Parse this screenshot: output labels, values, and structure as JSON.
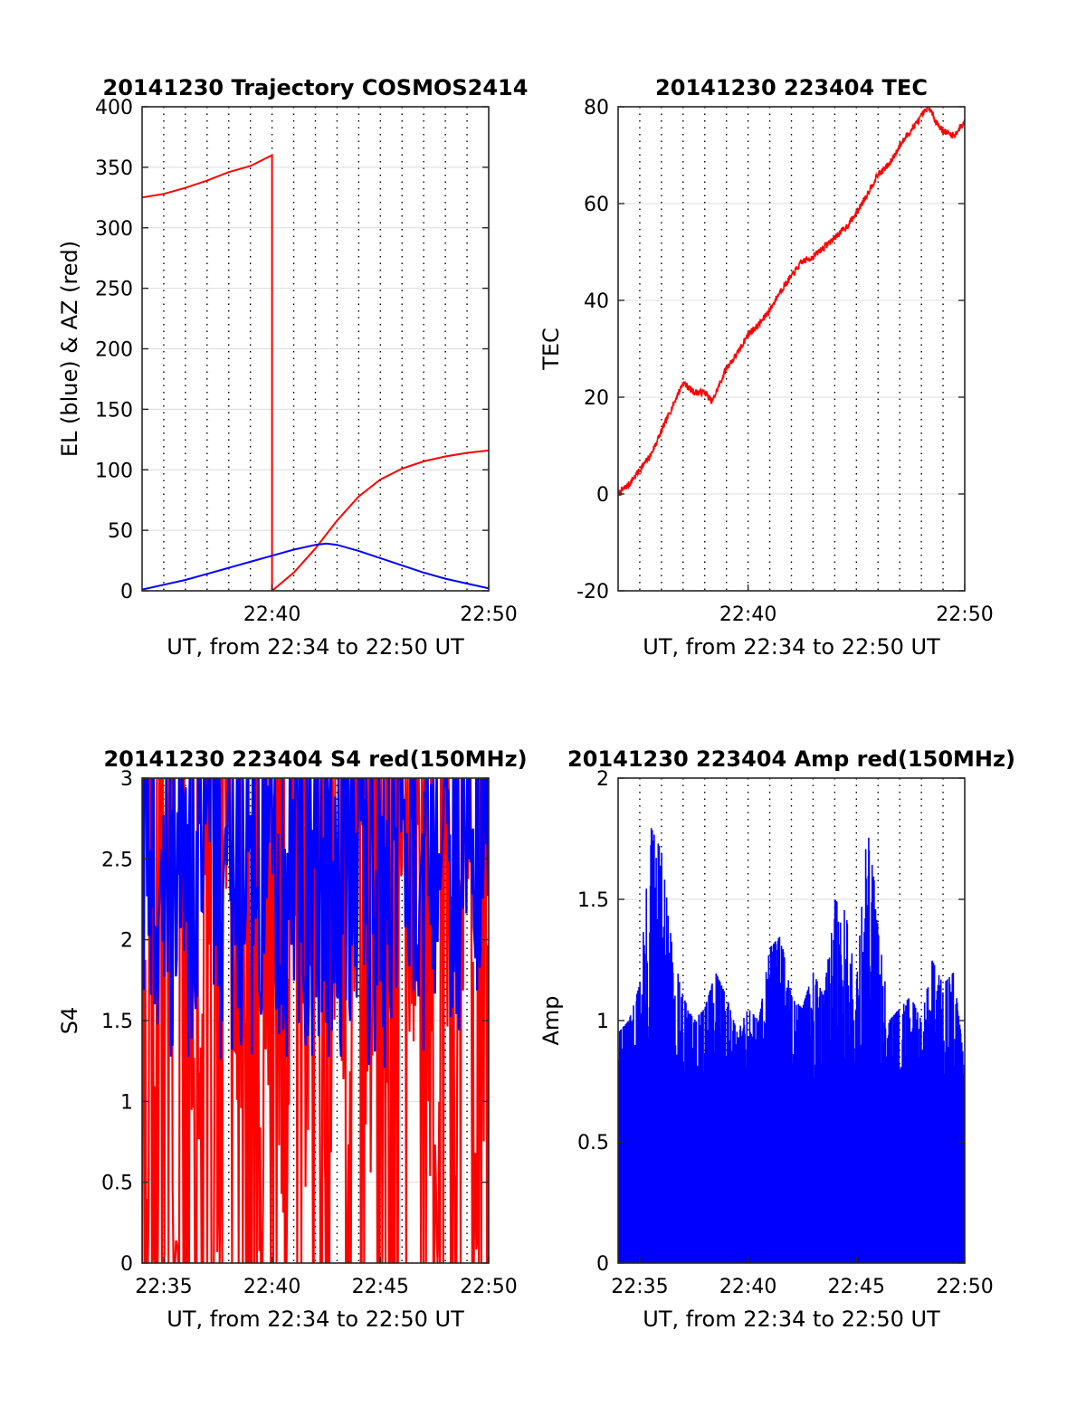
{
  "chart_data": [
    {
      "type": "line",
      "title": "20141230 Trajectory COSMOS2414",
      "xlabel": "UT, from 22:34 to 22:50 UT",
      "ylabel": "EL (blue) & AZ (red)",
      "xlim": [
        "22:34",
        "22:50"
      ],
      "ylim": [
        0,
        400
      ],
      "x_ticks": [
        "22:40",
        "22:50"
      ],
      "y_ticks": [
        0,
        50,
        100,
        150,
        200,
        250,
        300,
        350,
        400
      ],
      "grid": true,
      "series": [
        {
          "color": "#ff0000",
          "x": [
            "22:34:00",
            "22:35:00",
            "22:36:00",
            "22:37:00",
            "22:38:00",
            "22:39:00",
            "22:40:00",
            "22:40:00",
            "22:41:00",
            "22:42:00",
            "22:43:00",
            "22:44:00",
            "22:45:00",
            "22:46:00",
            "22:47:00",
            "22:48:00",
            "22:49:00",
            "22:50:00"
          ],
          "values": [
            325,
            328,
            333,
            339,
            346,
            351,
            360,
            0,
            15,
            35,
            58,
            78,
            92,
            101,
            107,
            111,
            114,
            116
          ]
        },
        {
          "color": "#0000ff",
          "x": [
            "22:34:00",
            "22:35:00",
            "22:36:00",
            "22:37:00",
            "22:38:00",
            "22:39:00",
            "22:40:00",
            "22:41:00",
            "22:42:00",
            "22:42:30",
            "22:43:00",
            "22:44:00",
            "22:45:00",
            "22:46:00",
            "22:47:00",
            "22:48:00",
            "22:49:00",
            "22:50:00"
          ],
          "values": [
            1,
            5,
            9,
            14,
            19,
            24,
            29,
            34,
            38,
            39,
            38,
            33,
            27,
            21,
            15,
            10,
            6,
            2
          ]
        }
      ]
    },
    {
      "type": "line",
      "title": "20141230 223404 TEC",
      "xlabel": "UT, from 22:34 to 22:50 UT",
      "ylabel": "TEC",
      "xlim": [
        "22:34",
        "22:50"
      ],
      "ylim": [
        -20,
        80
      ],
      "x_ticks": [
        "22:40",
        "22:50"
      ],
      "y_ticks": [
        -20,
        0,
        20,
        40,
        60,
        80
      ],
      "grid": true,
      "series": [
        {
          "color": "#ff0000",
          "x": [
            "22:34:00",
            "22:34:30",
            "22:35:00",
            "22:35:30",
            "22:36:00",
            "22:36:30",
            "22:37:00",
            "22:37:30",
            "22:38:00",
            "22:38:20",
            "22:39:00",
            "22:39:30",
            "22:40:00",
            "22:40:30",
            "22:41:00",
            "22:41:30",
            "22:42:00",
            "22:42:30",
            "22:43:00",
            "22:43:30",
            "22:44:00",
            "22:44:30",
            "22:45:00",
            "22:45:30",
            "22:46:00",
            "22:46:30",
            "22:47:00",
            "22:47:30",
            "22:48:00",
            "22:48:20",
            "22:48:40",
            "22:49:00",
            "22:49:30",
            "22:50:00"
          ],
          "values": [
            0,
            2,
            5,
            8,
            13,
            18,
            23,
            21,
            21,
            19,
            26,
            29,
            33,
            35,
            38,
            42,
            45,
            48,
            49,
            51,
            53,
            55,
            58,
            62,
            66,
            68,
            72,
            75,
            78,
            80,
            77,
            75,
            74,
            77
          ]
        }
      ]
    },
    {
      "type": "line",
      "title": "20141230 223404 S4 red(150MHz)",
      "xlabel": "UT, from 22:34 to 22:50 UT",
      "ylabel": "S4",
      "xlim": [
        "22:34",
        "22:50"
      ],
      "ylim": [
        0,
        3
      ],
      "x_ticks": [
        "22:35",
        "22:40",
        "22:45",
        "22:50"
      ],
      "y_ticks": [
        0,
        0.5,
        1,
        1.5,
        2,
        2.5,
        3
      ],
      "grid": true,
      "series": [
        {
          "color": "#ff0000",
          "x": [
            "22:34:00",
            "22:34:30",
            "22:35:00",
            "22:35:30",
            "22:36:00",
            "22:36:30",
            "22:37:00",
            "22:37:30",
            "22:38:00",
            "22:38:30",
            "22:39:00",
            "22:39:30",
            "22:40:00",
            "22:40:30",
            "22:41:00",
            "22:41:30",
            "22:42:00",
            "22:42:30",
            "22:43:00",
            "22:43:30",
            "22:44:00",
            "22:44:30",
            "22:45:00",
            "22:45:30",
            "22:46:00",
            "22:46:30",
            "22:47:00",
            "22:47:30",
            "22:48:00",
            "22:48:30",
            "22:49:00",
            "22:49:30",
            "22:50:00"
          ],
          "values": [
            1.9,
            0,
            3.0,
            0,
            2.4,
            0.3,
            3.0,
            0,
            2.8,
            1.3,
            3.0,
            0,
            2.6,
            0,
            3.0,
            0.9,
            3.0,
            0,
            3.0,
            0,
            2.7,
            0.5,
            3.0,
            0,
            2.9,
            1.6,
            3.0,
            0,
            2.5,
            1.1,
            3.0,
            0,
            1.8
          ]
        },
        {
          "color": "#0000ff",
          "x": [
            "22:34:00",
            "22:34:30",
            "22:35:00",
            "22:35:30",
            "22:36:00",
            "22:36:30",
            "22:37:00",
            "22:37:30",
            "22:38:00",
            "22:38:30",
            "22:39:00",
            "22:39:30",
            "22:40:00",
            "22:40:30",
            "22:41:00",
            "22:41:30",
            "22:42:00",
            "22:42:30",
            "22:43:00",
            "22:43:30",
            "22:44:00",
            "22:44:30",
            "22:45:00",
            "22:45:30",
            "22:46:00",
            "22:46:30",
            "22:47:00",
            "22:47:30",
            "22:48:00",
            "22:48:30",
            "22:49:00",
            "22:49:30",
            "22:50:00"
          ],
          "values": [
            3.0,
            1.4,
            2.8,
            1.6,
            3.0,
            1.5,
            2.9,
            1.7,
            3.0,
            1.3,
            2.8,
            1.5,
            3.0,
            1.4,
            2.9,
            1.6,
            3.0,
            1.5,
            2.7,
            1.4,
            3.0,
            1.6,
            2.9,
            1.5,
            3.0,
            1.3,
            2.8,
            1.6,
            3.0,
            1.5,
            2.9,
            1.6,
            3.0
          ]
        }
      ]
    },
    {
      "type": "bar",
      "title": "20141230 223404 Amp red(150MHz)",
      "xlabel": "UT, from 22:34 to 22:50 UT",
      "ylabel": "Amp",
      "xlim": [
        "22:34",
        "22:50"
      ],
      "ylim": [
        0,
        2
      ],
      "x_ticks": [
        "22:35",
        "22:40",
        "22:45",
        "22:50"
      ],
      "y_ticks": [
        0,
        0.5,
        1,
        1.5,
        2
      ],
      "grid": true,
      "series": [
        {
          "color": "#0000ff",
          "x": [
            "22:34:00",
            "22:34:30",
            "22:35:00",
            "22:35:30",
            "22:36:00",
            "22:36:30",
            "22:37:00",
            "22:37:30",
            "22:38:00",
            "22:38:30",
            "22:39:00",
            "22:39:30",
            "22:40:00",
            "22:40:30",
            "22:41:00",
            "22:41:30",
            "22:42:00",
            "22:42:30",
            "22:43:00",
            "22:43:30",
            "22:44:00",
            "22:44:30",
            "22:45:00",
            "22:45:30",
            "22:46:00",
            "22:46:30",
            "22:47:00",
            "22:47:30",
            "22:48:00",
            "22:48:30",
            "22:49:00",
            "22:49:30",
            "22:50:00"
          ],
          "values": [
            0.95,
            1.0,
            1.15,
            1.8,
            1.7,
            1.3,
            1.1,
            1.0,
            1.05,
            1.2,
            1.1,
            0.95,
            1.05,
            1.0,
            1.3,
            1.35,
            1.1,
            1.05,
            1.2,
            1.1,
            1.5,
            1.45,
            1.15,
            1.8,
            1.45,
            1.0,
            1.05,
            1.1,
            1.0,
            1.25,
            1.15,
            1.2,
            0.8
          ]
        }
      ]
    }
  ],
  "colors": {
    "az": "#ff0000",
    "el": "#0000ff",
    "grid_major": "#dcdcdc",
    "grid_minor": "#000000",
    "axes": "#262626"
  }
}
